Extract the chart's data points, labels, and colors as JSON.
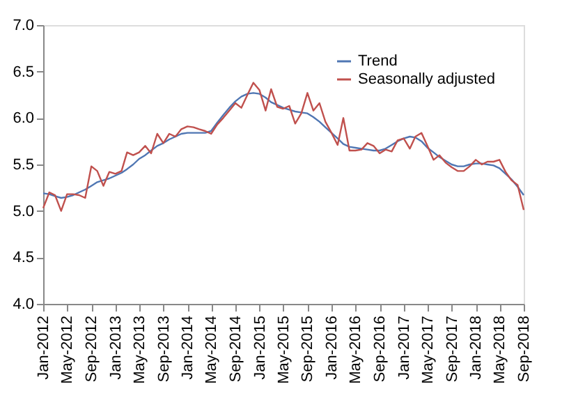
{
  "chart_data": {
    "type": "line",
    "x": [
      "2012-01",
      "2012-02",
      "2012-03",
      "2012-04",
      "2012-05",
      "2012-06",
      "2012-07",
      "2012-08",
      "2012-09",
      "2012-10",
      "2012-11",
      "2012-12",
      "2013-01",
      "2013-02",
      "2013-03",
      "2013-04",
      "2013-05",
      "2013-06",
      "2013-07",
      "2013-08",
      "2013-09",
      "2013-10",
      "2013-11",
      "2013-12",
      "2014-01",
      "2014-02",
      "2014-03",
      "2014-04",
      "2014-05",
      "2014-06",
      "2014-07",
      "2014-08",
      "2014-09",
      "2014-10",
      "2014-11",
      "2014-12",
      "2015-01",
      "2015-02",
      "2015-03",
      "2015-04",
      "2015-05",
      "2015-06",
      "2015-07",
      "2015-08",
      "2015-09",
      "2015-10",
      "2015-11",
      "2015-12",
      "2016-01",
      "2016-02",
      "2016-03",
      "2016-04",
      "2016-05",
      "2016-06",
      "2016-07",
      "2016-08",
      "2016-09",
      "2016-10",
      "2016-11",
      "2016-12",
      "2017-01",
      "2017-02",
      "2017-03",
      "2017-04",
      "2017-05",
      "2017-06",
      "2017-07",
      "2017-08",
      "2017-09",
      "2017-10",
      "2017-11",
      "2017-12",
      "2018-01",
      "2018-02",
      "2018-03",
      "2018-04",
      "2018-05",
      "2018-06",
      "2018-07",
      "2018-08",
      "2018-09"
    ],
    "series": [
      {
        "name": "Trend",
        "color": "#4f76b3",
        "values": [
          5.19,
          5.18,
          5.16,
          5.14,
          5.15,
          5.17,
          5.2,
          5.23,
          5.27,
          5.31,
          5.33,
          5.35,
          5.38,
          5.41,
          5.45,
          5.5,
          5.56,
          5.6,
          5.65,
          5.7,
          5.73,
          5.77,
          5.8,
          5.83,
          5.84,
          5.84,
          5.84,
          5.84,
          5.86,
          5.95,
          6.03,
          6.11,
          6.18,
          6.23,
          6.26,
          6.27,
          6.26,
          6.22,
          6.17,
          6.14,
          6.11,
          6.09,
          6.07,
          6.06,
          6.05,
          6.01,
          5.96,
          5.9,
          5.84,
          5.78,
          5.72,
          5.69,
          5.68,
          5.67,
          5.66,
          5.65,
          5.65,
          5.67,
          5.71,
          5.75,
          5.78,
          5.8,
          5.79,
          5.75,
          5.68,
          5.63,
          5.58,
          5.54,
          5.5,
          5.48,
          5.48,
          5.5,
          5.51,
          5.51,
          5.5,
          5.49,
          5.46,
          5.4,
          5.34,
          5.26,
          5.17
        ]
      },
      {
        "name": "Seasonally adjusted",
        "color": "#c0504d",
        "values": [
          5.03,
          5.2,
          5.17,
          5.0,
          5.18,
          5.18,
          5.17,
          5.14,
          5.48,
          5.43,
          5.27,
          5.42,
          5.4,
          5.43,
          5.63,
          5.6,
          5.63,
          5.7,
          5.62,
          5.83,
          5.73,
          5.83,
          5.8,
          5.88,
          5.91,
          5.9,
          5.88,
          5.86,
          5.83,
          5.93,
          6.0,
          6.08,
          6.16,
          6.11,
          6.25,
          6.38,
          6.3,
          6.08,
          6.31,
          6.12,
          6.1,
          6.13,
          5.94,
          6.05,
          6.27,
          6.08,
          6.16,
          5.96,
          5.84,
          5.71,
          6.0,
          5.65,
          5.65,
          5.66,
          5.73,
          5.7,
          5.62,
          5.66,
          5.64,
          5.76,
          5.78,
          5.67,
          5.8,
          5.84,
          5.7,
          5.55,
          5.6,
          5.52,
          5.47,
          5.43,
          5.43,
          5.48,
          5.55,
          5.5,
          5.53,
          5.53,
          5.55,
          5.42,
          5.33,
          5.28,
          5.01
        ]
      }
    ],
    "ylim": [
      4.0,
      7.0
    ],
    "yticks": [
      {
        "value": 4.0,
        "label": "4.0"
      },
      {
        "value": 4.5,
        "label": "4.5"
      },
      {
        "value": 5.0,
        "label": "5.0"
      },
      {
        "value": 5.5,
        "label": "5.5"
      },
      {
        "value": 6.0,
        "label": "6.0"
      },
      {
        "value": 6.5,
        "label": "6.5"
      },
      {
        "value": 7.0,
        "label": "7.0"
      }
    ],
    "xlim": [
      "2012-01",
      "2018-09"
    ],
    "xticks": [
      {
        "value": "2012-01",
        "label": "Jan-2012"
      },
      {
        "value": "2012-05",
        "label": "May-2012"
      },
      {
        "value": "2012-09",
        "label": "Sep-2012"
      },
      {
        "value": "2013-01",
        "label": "Jan-2013"
      },
      {
        "value": "2013-05",
        "label": "May-2013"
      },
      {
        "value": "2013-09",
        "label": "Sep-2013"
      },
      {
        "value": "2014-01",
        "label": "Jan-2014"
      },
      {
        "value": "2014-05",
        "label": "May-2014"
      },
      {
        "value": "2014-09",
        "label": "Sep-2014"
      },
      {
        "value": "2015-01",
        "label": "Jan-2015"
      },
      {
        "value": "2015-05",
        "label": "May-2015"
      },
      {
        "value": "2015-09",
        "label": "Sep-2015"
      },
      {
        "value": "2016-01",
        "label": "Jan-2016"
      },
      {
        "value": "2016-05",
        "label": "May-2016"
      },
      {
        "value": "2016-09",
        "label": "Sep-2016"
      },
      {
        "value": "2017-01",
        "label": "Jan-2017"
      },
      {
        "value": "2017-05",
        "label": "May-2017"
      },
      {
        "value": "2017-09",
        "label": "Sep-2017"
      },
      {
        "value": "2018-01",
        "label": "Jan-2018"
      },
      {
        "value": "2018-05",
        "label": "May-2018"
      },
      {
        "value": "2018-09",
        "label": "Sep-2018"
      }
    ],
    "legend": "top right",
    "grid": false,
    "marker": "none",
    "line_style": "solid"
  }
}
